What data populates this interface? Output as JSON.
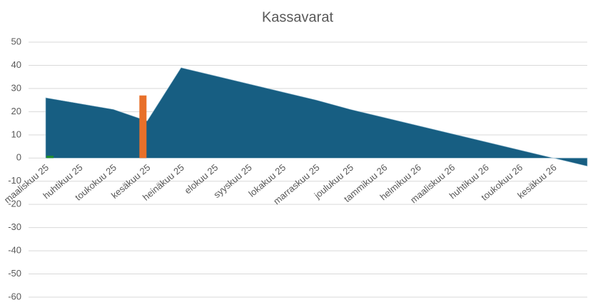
{
  "chart_data": {
    "type": "combo",
    "title": "Kassavarat",
    "categories": [
      "maaliskuu 25",
      "huhtikuu 25",
      "toukokuu 25",
      "kesäkuu 25",
      "heinäkuu 25",
      "elokuu 25",
      "syyskuu 25",
      "lokakuu 25",
      "marraskuu 25",
      "joulukuu 25",
      "tammikuu 26",
      "helmikuu 26",
      "maaliskuu 26",
      "huhtikuu 26",
      "toukokuu 26",
      "kesäkuu 26",
      null
    ],
    "series": [
      {
        "type": "area",
        "color": "#175e82",
        "values": [
          26,
          23.5,
          21,
          16,
          39,
          35.5,
          32,
          28.5,
          25,
          21,
          17.5,
          14,
          10.5,
          7,
          3.5,
          0,
          -3.5
        ]
      },
      {
        "type": "bar",
        "color": "#1e8c2e",
        "values": [
          1,
          null,
          null,
          null,
          null,
          null,
          null,
          null,
          null,
          null,
          null,
          null,
          null,
          null,
          null,
          null,
          null
        ]
      },
      {
        "type": "bar",
        "color": "#e8702a",
        "values": [
          null,
          null,
          null,
          27,
          null,
          null,
          null,
          null,
          null,
          null,
          null,
          null,
          null,
          null,
          null,
          null,
          null
        ]
      }
    ],
    "ylim": [
      -60,
      50
    ],
    "yticks": [
      -60,
      -50,
      -40,
      -30,
      -20,
      -10,
      0,
      10,
      20,
      30,
      40,
      50
    ],
    "grid": true
  }
}
